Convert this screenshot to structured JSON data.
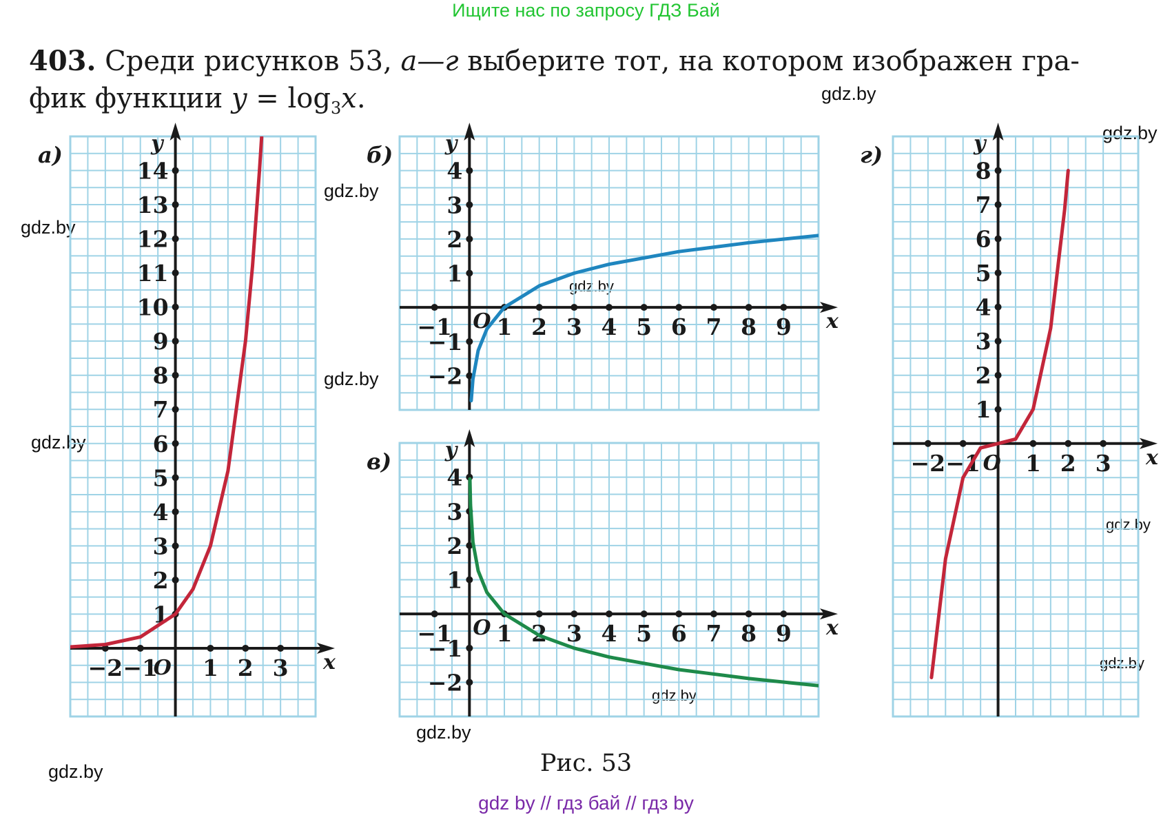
{
  "header": {
    "text": "Ищите нас по запросу ГДЗ Бай"
  },
  "problem": {
    "number": "403.",
    "text_part1": " Среди рисунков 53, ",
    "text_range": "а—г",
    "text_part2": " выберите тот, на котором изображен гра-",
    "line2_text": "фик функции ",
    "formula_y": "y",
    "formula_eq": " = log",
    "formula_base": "3",
    "formula_x": "x",
    "formula_end": "."
  },
  "watermarks": [
    "gdz.by",
    "gdz.by",
    "gdz.by",
    "gdz.by",
    "gdz.by",
    "gdz.by",
    "gdz.by",
    "gdz.by",
    "gdz.by",
    "gdz.by",
    "gdz.by"
  ],
  "caption": "Рис. 53",
  "footer": "gdz by  //  гдз бай  //  гдз by",
  "colors": {
    "header": "#22c532",
    "footer": "#7a2aa8",
    "grid": "#9fd3e6",
    "curve_a": "#c3263a",
    "curve_b": "#1f86bf",
    "curve_v": "#1e8a4a",
    "curve_g": "#c3263a"
  },
  "chart_data": [
    {
      "panel_label": "а)",
      "type": "line",
      "function": "y = 3^x",
      "xlabel": "x",
      "ylabel": "y",
      "origin_label": "O",
      "xlim": [
        -3,
        4
      ],
      "ylim": [
        -2,
        15
      ],
      "x_ticks": [
        -2,
        -1,
        1,
        2,
        3
      ],
      "x_tick_labels": [
        "−2",
        "−1",
        "1",
        "2",
        "3"
      ],
      "y_ticks": [
        1,
        2,
        3,
        4,
        5,
        6,
        7,
        8,
        9,
        10,
        11,
        12,
        13,
        14
      ],
      "y_tick_labels": [
        "1",
        "2",
        "3",
        "4",
        "5",
        "6",
        "7",
        "8",
        "9",
        "10",
        "11",
        "12",
        "13",
        "14"
      ],
      "grid": true,
      "series": [
        {
          "x": [
            -3,
            -2,
            -1,
            0,
            0.5,
            1,
            1.5,
            2,
            2.2,
            2.4,
            2.5
          ],
          "y": [
            0.04,
            0.11,
            0.33,
            1,
            1.73,
            3,
            5.2,
            9,
            11.2,
            14,
            15.6
          ]
        }
      ]
    },
    {
      "panel_label": "б)",
      "type": "line",
      "function": "y = log3 x",
      "xlabel": "x",
      "ylabel": "y",
      "origin_label": "O",
      "xlim": [
        -2,
        10
      ],
      "ylim": [
        -3,
        5
      ],
      "x_ticks": [
        -1,
        1,
        2,
        3,
        4,
        5,
        6,
        7,
        8,
        9
      ],
      "x_tick_labels": [
        "−1",
        "1",
        "2",
        "3",
        "4",
        "5",
        "6",
        "7",
        "8",
        "9"
      ],
      "y_ticks": [
        -2,
        -1,
        1,
        2,
        3,
        4
      ],
      "y_tick_labels": [
        "−2",
        "−1",
        "1",
        "2",
        "3",
        "4"
      ],
      "grid": true,
      "series": [
        {
          "x": [
            0.05,
            0.1,
            0.25,
            0.5,
            1,
            2,
            3,
            4,
            6,
            8,
            10
          ],
          "y": [
            -2.73,
            -2.1,
            -1.26,
            -0.63,
            0,
            0.63,
            1,
            1.26,
            1.63,
            1.89,
            2.1
          ]
        }
      ]
    },
    {
      "panel_label": "в)",
      "type": "line",
      "function": "y = log1/3 x",
      "xlabel": "x",
      "ylabel": "y",
      "origin_label": "O",
      "xlim": [
        -2,
        10
      ],
      "ylim": [
        -3,
        5
      ],
      "x_ticks": [
        -1,
        1,
        2,
        3,
        4,
        5,
        6,
        7,
        8,
        9
      ],
      "x_tick_labels": [
        "−1",
        "1",
        "2",
        "3",
        "4",
        "5",
        "6",
        "7",
        "8",
        "9"
      ],
      "y_ticks": [
        -2,
        -1,
        1,
        2,
        3,
        4
      ],
      "y_tick_labels": [
        "−2",
        "−1",
        "1",
        "2",
        "3",
        "4"
      ],
      "grid": true,
      "series": [
        {
          "x": [
            0.013,
            0.03,
            0.1,
            0.25,
            0.5,
            1,
            2,
            3,
            4,
            6,
            8,
            10
          ],
          "y": [
            3.95,
            3.19,
            2.1,
            1.26,
            0.63,
            0,
            -0.63,
            -1,
            -1.26,
            -1.63,
            -1.89,
            -2.1
          ]
        }
      ]
    },
    {
      "panel_label": "г)",
      "type": "line",
      "function": "y = x^3",
      "xlabel": "x",
      "ylabel": "y",
      "origin_label": "O",
      "xlim": [
        -3,
        4
      ],
      "ylim": [
        -8,
        9
      ],
      "x_ticks": [
        -2,
        -1,
        1,
        2,
        3
      ],
      "x_tick_labels": [
        "−2",
        "−1",
        "1",
        "2",
        "3"
      ],
      "y_ticks": [
        1,
        2,
        3,
        4,
        5,
        6,
        7,
        8
      ],
      "y_tick_labels": [
        "1",
        "2",
        "3",
        "4",
        "5",
        "6",
        "7",
        "8"
      ],
      "grid": true,
      "series": [
        {
          "x": [
            -1.9,
            -1.5,
            -1,
            -0.5,
            0,
            0.5,
            1,
            1.5,
            1.9,
            2.0
          ],
          "y": [
            -6.86,
            -3.38,
            -1,
            -0.13,
            0,
            0.13,
            1,
            3.38,
            6.86,
            8
          ]
        }
      ]
    }
  ]
}
